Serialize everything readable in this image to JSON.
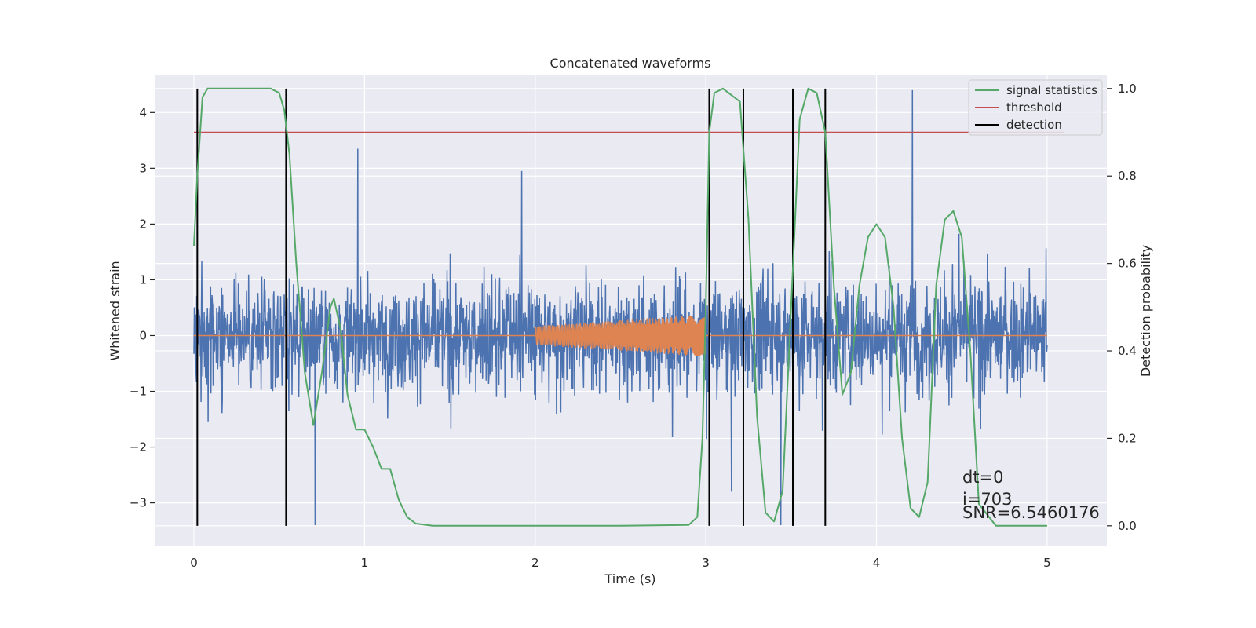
{
  "chart_data": {
    "type": "line",
    "title": "Concatenated waveforms",
    "xlabel": "Time (s)",
    "ylabel": "Whitened strain",
    "y2label": "Detection probability",
    "xlim": [
      -0.23,
      5.35
    ],
    "ylim": [
      -3.78,
      4.68
    ],
    "y2lim": [
      -0.047,
      1.032
    ],
    "xticks": [
      0,
      1,
      2,
      3,
      4,
      5
    ],
    "yticks": [
      -3,
      -2,
      -1,
      0,
      1,
      2,
      3,
      4
    ],
    "y2ticks": [
      0.0,
      0.2,
      0.4,
      0.6,
      0.8,
      1.0
    ],
    "y2tick_labels": [
      "0.0",
      "0.2",
      "0.4",
      "0.6",
      "0.8",
      "1.0"
    ],
    "grid": true,
    "legend_placement": "top-right",
    "colors": {
      "background": "#eaeaf2",
      "grid": "#ffffff",
      "strain": "#4c72b0",
      "template": "#dd8452",
      "statistic": "#55a868",
      "threshold": "#c44e52",
      "detection": "#000000"
    },
    "series": [
      {
        "name": "",
        "axis": "left",
        "kind": "noise",
        "x_range": [
          0,
          5
        ],
        "typical_range": [
          -1.6,
          1.6
        ],
        "extremes": [
          [
            0.96,
            3.35
          ],
          [
            0.71,
            -3.4
          ],
          [
            4.21,
            4.4
          ],
          [
            3.44,
            -3.4
          ],
          [
            1.92,
            2.95
          ],
          [
            3.15,
            -2.8
          ]
        ]
      },
      {
        "name": "",
        "axis": "left",
        "kind": "chirp",
        "x_range": [
          2.0,
          3.0
        ],
        "amplitude": [
          0.17,
          0.38
        ]
      },
      {
        "name": "signal statistics",
        "axis": "right",
        "x": [
          0.0,
          0.02,
          0.05,
          0.08,
          0.12,
          0.2,
          0.3,
          0.45,
          0.5,
          0.53,
          0.56,
          0.6,
          0.65,
          0.7,
          0.75,
          0.8,
          0.82,
          0.86,
          0.9,
          0.95,
          1.0,
          1.05,
          1.1,
          1.12,
          1.15,
          1.2,
          1.25,
          1.3,
          1.4,
          1.6,
          2.0,
          2.5,
          2.9,
          2.95,
          2.98,
          3.0,
          3.02,
          3.05,
          3.1,
          3.2,
          3.25,
          3.3,
          3.35,
          3.4,
          3.45,
          3.5,
          3.55,
          3.6,
          3.65,
          3.7,
          3.75,
          3.8,
          3.85,
          3.9,
          3.95,
          4.0,
          4.05,
          4.1,
          4.15,
          4.2,
          4.25,
          4.3,
          4.35,
          4.4,
          4.45,
          4.5,
          4.55,
          4.6,
          4.7,
          5.0
        ],
        "values": [
          0.64,
          0.8,
          0.98,
          1.0,
          1.0,
          1.0,
          1.0,
          1.0,
          0.99,
          0.95,
          0.85,
          0.6,
          0.35,
          0.23,
          0.35,
          0.5,
          0.52,
          0.45,
          0.3,
          0.22,
          0.22,
          0.18,
          0.13,
          0.13,
          0.13,
          0.06,
          0.02,
          0.005,
          0.0,
          0.0,
          0.0,
          0.0,
          0.002,
          0.02,
          0.2,
          0.5,
          0.9,
          0.99,
          1.0,
          0.97,
          0.7,
          0.25,
          0.03,
          0.01,
          0.08,
          0.5,
          0.93,
          1.0,
          0.99,
          0.9,
          0.55,
          0.3,
          0.35,
          0.55,
          0.66,
          0.69,
          0.66,
          0.5,
          0.2,
          0.04,
          0.02,
          0.1,
          0.55,
          0.7,
          0.72,
          0.66,
          0.4,
          0.05,
          0.0,
          0.0
        ]
      },
      {
        "name": "threshold",
        "axis": "right",
        "x": [
          0.0,
          5.1
        ],
        "values": [
          0.9,
          0.9
        ]
      },
      {
        "name": "detection",
        "axis": "right",
        "kind": "vertical_lines",
        "x": [
          0.02,
          0.54,
          3.02,
          3.22,
          3.51,
          3.7
        ],
        "y_range": [
          0.0,
          1.0
        ]
      }
    ],
    "legend": [
      "signal statistics",
      "threshold",
      "detection"
    ],
    "annotations": [
      "dt=0",
      "i=703",
      "SNR=6.5460176"
    ]
  }
}
